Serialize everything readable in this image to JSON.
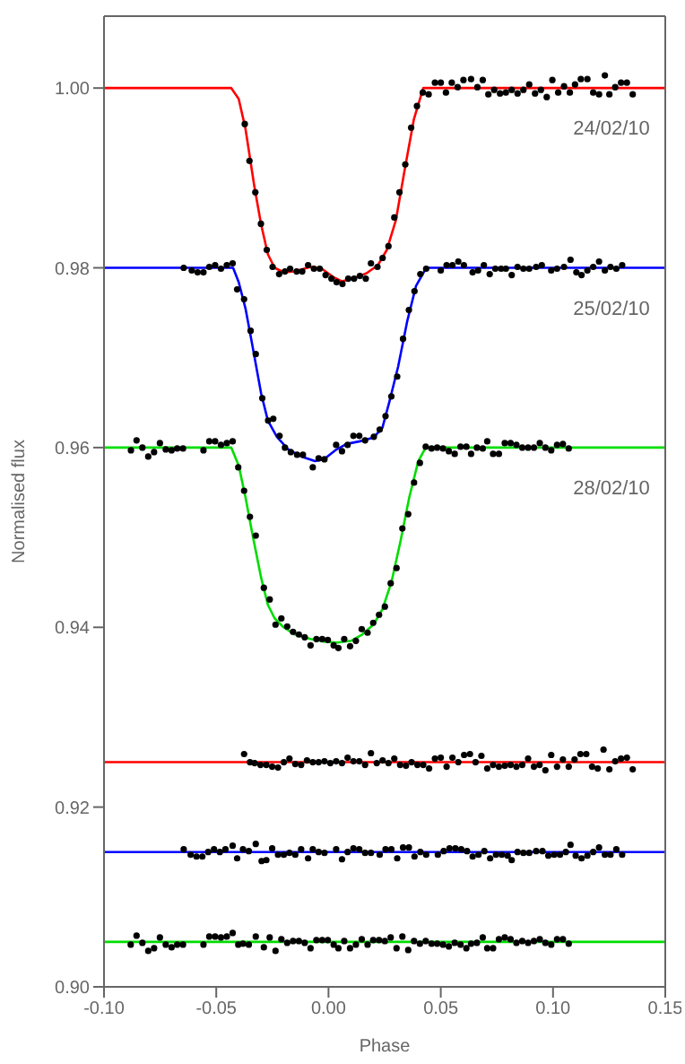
{
  "chart_data": {
    "type": "scatter",
    "xlabel": "Phase",
    "ylabel": "Normalised flux",
    "xlim": [
      -0.1,
      0.15
    ],
    "ylim": [
      0.9,
      1.008
    ],
    "xticks": [
      {
        "value": -0.1,
        "label": "-0.10"
      },
      {
        "value": -0.05,
        "label": "-0.05"
      },
      {
        "value": 0,
        "label": "0.00"
      },
      {
        "value": 0.05,
        "label": "0.05"
      },
      {
        "value": 0.1,
        "label": "0.10"
      },
      {
        "value": 0.15,
        "label": "0.15"
      }
    ],
    "yticks": [
      {
        "value": 0.9,
        "label": "0.90"
      },
      {
        "value": 0.92,
        "label": "0.92"
      },
      {
        "value": 0.94,
        "label": "0.94"
      },
      {
        "value": 0.96,
        "label": "0.96"
      },
      {
        "value": 0.98,
        "label": "0.98"
      },
      {
        "value": 1.0,
        "label": "1.00"
      }
    ],
    "marker": "circle",
    "legend": false,
    "grid": false,
    "ref_lines": [
      {
        "axis": "y",
        "value": 0.925,
        "color": "#ff0000"
      },
      {
        "axis": "y",
        "value": 0.915,
        "color": "#0000ff"
      },
      {
        "axis": "y",
        "value": 0.905,
        "color": "#00dd00"
      }
    ],
    "annotations": [
      "24/02/10",
      "25/02/10",
      "28/02/10"
    ],
    "series": [
      {
        "type": "line",
        "marker": "none",
        "color": "#ff0000",
        "x": [
          -0.1,
          -0.0433,
          -0.04,
          -0.037,
          -0.033,
          -0.03,
          -0.027,
          -0.024,
          -0.02,
          -0.015,
          -0.008,
          -0.003,
          0.002,
          0.006,
          0.011,
          0.017,
          0.022,
          0.026,
          0.03,
          0.034,
          0.038,
          0.0422,
          0.15
        ],
        "values": [
          1.0,
          1.0,
          0.9988,
          0.9955,
          0.989,
          0.9848,
          0.9815,
          0.98,
          0.9795,
          0.9796,
          0.9801,
          0.9799,
          0.979,
          0.9785,
          0.9788,
          0.9794,
          0.9803,
          0.982,
          0.9853,
          0.991,
          0.9965,
          1.0,
          1.0
        ]
      },
      {
        "type": "line",
        "marker": "none",
        "color": "#0000ff",
        "x": [
          -0.1,
          -0.0425,
          -0.04,
          -0.037,
          -0.034,
          -0.03,
          -0.027,
          -0.023,
          -0.018,
          -0.012,
          -0.006,
          -0.002,
          0.003,
          0.008,
          0.014,
          0.02,
          0.024,
          0.027,
          0.031,
          0.035,
          0.039,
          0.0435,
          0.15
        ],
        "values": [
          0.98,
          0.98,
          0.9784,
          0.9755,
          0.9715,
          0.966,
          0.963,
          0.9612,
          0.9598,
          0.959,
          0.9585,
          0.9587,
          0.9597,
          0.9604,
          0.9607,
          0.9611,
          0.9622,
          0.965,
          0.969,
          0.974,
          0.978,
          0.98,
          0.98
        ]
      },
      {
        "type": "line",
        "marker": "none",
        "color": "#00dd00",
        "x": [
          -0.1,
          -0.0433,
          -0.04,
          -0.037,
          -0.034,
          -0.03,
          -0.027,
          -0.024,
          -0.02,
          -0.015,
          -0.008,
          -0.002,
          0.004,
          0.01,
          0.015,
          0.02,
          0.024,
          0.028,
          0.032,
          0.036,
          0.04,
          0.0433,
          0.15
        ],
        "values": [
          0.96,
          0.96,
          0.958,
          0.9545,
          0.9505,
          0.9455,
          0.9425,
          0.941,
          0.94,
          0.9392,
          0.9387,
          0.9384,
          0.9383,
          0.9385,
          0.9392,
          0.9403,
          0.942,
          0.945,
          0.9495,
          0.9545,
          0.9585,
          0.96,
          0.96
        ]
      },
      {
        "color": "#000000",
        "x": [
          -0.0373,
          -0.0352,
          -0.0326,
          -0.0301,
          -0.0275,
          -0.0249,
          -0.022,
          -0.0194,
          -0.0171,
          -0.0142,
          -0.0117,
          -0.0091,
          -0.0065,
          -0.0039,
          -0.0013,
          0.0013,
          0.0036,
          0.0062,
          0.0088,
          0.0114,
          0.014,
          0.0166,
          0.0189,
          0.0218,
          0.0241,
          0.0267,
          0.0293,
          0.0316,
          0.0342,
          0.0368,
          0.0394,
          0.042,
          0.0446,
          0.0474,
          0.05,
          0.0523,
          0.0549,
          0.0575,
          0.0601,
          0.0635,
          0.0663,
          0.0687,
          0.0712,
          0.0738,
          0.0764,
          0.079,
          0.0816,
          0.0842,
          0.0868,
          0.0894,
          0.092,
          0.0946,
          0.0972,
          0.0997,
          0.1023,
          0.1049,
          0.1075,
          0.1098,
          0.1124,
          0.1153,
          0.1179,
          0.1205,
          0.1231,
          0.1251,
          0.1277,
          0.1303,
          0.1329,
          0.1355
        ],
        "values": [
          0.996,
          0.9919,
          0.9884,
          0.9849,
          0.982,
          0.9801,
          0.9793,
          0.9796,
          0.9799,
          0.9796,
          0.9796,
          0.9803,
          0.9799,
          0.9799,
          0.9792,
          0.9788,
          0.9784,
          0.9782,
          0.9788,
          0.9788,
          0.9791,
          0.9788,
          0.9805,
          0.9801,
          0.9811,
          0.9824,
          0.9856,
          0.9884,
          0.9915,
          0.9956,
          0.998,
          0.9995,
          0.9993,
          1.0006,
          1.0006,
          0.9995,
          1.0006,
          1.0001,
          1.0009,
          1.001,
          1.0001,
          1.0009,
          0.9993,
          0.9998,
          0.9994,
          0.9995,
          0.9998,
          0.9994,
          0.9998,
          1.0004,
          0.9994,
          0.9998,
          0.999,
          1.0009,
          0.9995,
          1.0002,
          0.9995,
          1.0004,
          1.001,
          1.001,
          0.9995,
          0.9993,
          1.0014,
          0.9993,
          1.0001,
          1.0006,
          1.0006,
          0.9993
        ]
      },
      {
        "color": "#000000",
        "x": [
          -0.0645,
          -0.0609,
          -0.0583,
          -0.0557,
          -0.0531,
          -0.0505,
          -0.0479,
          -0.0453,
          -0.0427,
          -0.0407,
          -0.0376,
          -0.0347,
          -0.0324,
          -0.0295,
          -0.0269,
          -0.0246,
          -0.0218,
          -0.0194,
          -0.0168,
          -0.014,
          -0.0114,
          -0.007,
          -0.0044,
          -0.0018,
          0.0034,
          0.006,
          0.0085,
          0.0111,
          0.0137,
          0.0163,
          0.0202,
          0.0228,
          0.0254,
          0.028,
          0.0306,
          0.0332,
          0.0358,
          0.0383,
          0.0409,
          0.0435,
          0.05,
          0.0526,
          0.0552,
          0.0578,
          0.0603,
          0.0642,
          0.0666,
          0.0692,
          0.0718,
          0.0743,
          0.0769,
          0.079,
          0.0816,
          0.0842,
          0.0868,
          0.0894,
          0.0925,
          0.095,
          0.0992,
          0.1018,
          0.1049,
          0.1078,
          0.1104,
          0.1127,
          0.1153,
          0.1179,
          0.1205,
          0.1231,
          0.1256,
          0.1282,
          0.1308
        ],
        "values": [
          0.98,
          0.9797,
          0.9795,
          0.9795,
          0.9801,
          0.9803,
          0.9799,
          0.9803,
          0.9805,
          0.9776,
          0.9765,
          0.973,
          0.9704,
          0.9655,
          0.963,
          0.9632,
          0.9613,
          0.96,
          0.9595,
          0.9592,
          0.9592,
          0.9578,
          0.9588,
          0.9587,
          0.9603,
          0.9596,
          0.9603,
          0.9613,
          0.9613,
          0.9608,
          0.9612,
          0.962,
          0.9635,
          0.9657,
          0.9679,
          0.9721,
          0.9753,
          0.9774,
          0.9793,
          0.9799,
          0.9797,
          0.9803,
          0.9803,
          0.9807,
          0.9803,
          0.9795,
          0.9797,
          0.9803,
          0.9793,
          0.9799,
          0.9799,
          0.9799,
          0.9792,
          0.9801,
          0.9799,
          0.9799,
          0.9801,
          0.9803,
          0.9797,
          0.9799,
          0.9801,
          0.9809,
          0.9795,
          0.9792,
          0.9797,
          0.9801,
          0.9807,
          0.9797,
          0.9801,
          0.9799,
          0.9803
        ]
      },
      {
        "color": "#000000",
        "x": [
          -0.088,
          -0.0855,
          -0.0829,
          -0.0803,
          -0.0777,
          -0.0751,
          -0.0725,
          -0.0699,
          -0.0674,
          -0.0648,
          -0.0557,
          -0.0531,
          -0.0505,
          -0.0479,
          -0.0453,
          -0.0427,
          -0.0402,
          -0.0376,
          -0.035,
          -0.0324,
          -0.0288,
          -0.0262,
          -0.0236,
          -0.021,
          -0.0184,
          -0.0158,
          -0.0132,
          -0.0106,
          -0.008,
          -0.0054,
          -0.0028,
          -0.0003,
          0.0023,
          0.0044,
          0.007,
          0.0096,
          0.0122,
          0.0148,
          0.0174,
          0.0199,
          0.0225,
          0.0251,
          0.0277,
          0.0303,
          0.0329,
          0.0355,
          0.0381,
          0.0407,
          0.0433,
          0.0459,
          0.0484,
          0.051,
          0.0536,
          0.0562,
          0.0588,
          0.0614,
          0.0635,
          0.0661,
          0.0687,
          0.0707,
          0.0733,
          0.0759,
          0.0785,
          0.0811,
          0.0837,
          0.0863,
          0.0889,
          0.0915,
          0.0941,
          0.0966,
          0.0992,
          0.1018,
          0.1044,
          0.107
        ],
        "values": [
          0.9597,
          0.9608,
          0.96,
          0.959,
          0.9595,
          0.9605,
          0.9598,
          0.9597,
          0.9599,
          0.9599,
          0.9597,
          0.9607,
          0.9607,
          0.9603,
          0.9605,
          0.9607,
          0.9578,
          0.9552,
          0.9523,
          0.9502,
          0.9444,
          0.9431,
          0.9403,
          0.941,
          0.9401,
          0.9395,
          0.9392,
          0.9389,
          0.938,
          0.9387,
          0.9387,
          0.9386,
          0.938,
          0.9377,
          0.9387,
          0.9379,
          0.9385,
          0.9398,
          0.9394,
          0.9405,
          0.9414,
          0.9423,
          0.9449,
          0.9466,
          0.951,
          0.9526,
          0.9561,
          0.9583,
          0.9601,
          0.9599,
          0.96,
          0.9599,
          0.9596,
          0.9593,
          0.9601,
          0.9601,
          0.9593,
          0.96,
          0.9599,
          0.9607,
          0.9593,
          0.9593,
          0.9605,
          0.9605,
          0.9603,
          0.96,
          0.96,
          0.96,
          0.9605,
          0.96,
          0.9597,
          0.9603,
          0.9604,
          0.9599
        ]
      },
      {
        "color": "#000000",
        "x": [
          -0.0376,
          -0.035,
          -0.0329,
          -0.0303,
          -0.0277,
          -0.0251,
          -0.0225,
          -0.0199,
          -0.0174,
          -0.0148,
          -0.0122,
          -0.0096,
          -0.007,
          -0.0044,
          -0.0018,
          0.0008,
          0.0034,
          0.006,
          0.0085,
          0.0111,
          0.0137,
          0.0163,
          0.0189,
          0.0215,
          0.0241,
          0.0267,
          0.0293,
          0.0319,
          0.0345,
          0.037,
          0.0396,
          0.0422,
          0.0448,
          0.0474,
          0.05,
          0.0526,
          0.0552,
          0.0578,
          0.0604,
          0.063,
          0.0655,
          0.0681,
          0.0707,
          0.0733,
          0.0759,
          0.0785,
          0.0811,
          0.0837,
          0.0863,
          0.0889,
          0.0915,
          0.094,
          0.0966,
          0.0992,
          0.1018,
          0.1044,
          0.107,
          0.1096,
          0.1122,
          0.1148,
          0.1174,
          0.1199,
          0.1225,
          0.1251,
          0.1277,
          0.1303,
          0.1329,
          0.1355
        ],
        "values": [
          0.9259,
          0.925,
          0.9249,
          0.9247,
          0.9247,
          0.9245,
          0.9244,
          0.925,
          0.9254,
          0.9248,
          0.9247,
          0.9252,
          0.925,
          0.925,
          0.9251,
          0.9249,
          0.9251,
          0.9249,
          0.9255,
          0.9251,
          0.9251,
          0.9247,
          0.926,
          0.9249,
          0.9252,
          0.9249,
          0.9254,
          0.9247,
          0.9246,
          0.925,
          0.9247,
          0.9247,
          0.9243,
          0.9254,
          0.9255,
          0.9245,
          0.9255,
          0.925,
          0.9258,
          0.9259,
          0.925,
          0.9257,
          0.9243,
          0.9247,
          0.9245,
          0.9246,
          0.9247,
          0.9245,
          0.9247,
          0.9254,
          0.9245,
          0.9247,
          0.9241,
          0.9258,
          0.9245,
          0.9253,
          0.9245,
          0.9253,
          0.9259,
          0.9259,
          0.9245,
          0.9243,
          0.9264,
          0.9242,
          0.9251,
          0.9254,
          0.9255,
          0.9242
        ]
      },
      {
        "color": "#000000",
        "x": [
          -0.0645,
          -0.0614,
          -0.0588,
          -0.0562,
          -0.0536,
          -0.051,
          -0.0484,
          -0.0459,
          -0.0427,
          -0.0407,
          -0.0381,
          -0.0355,
          -0.0324,
          -0.0298,
          -0.0277,
          -0.0251,
          -0.0225,
          -0.0199,
          -0.0174,
          -0.0148,
          -0.0122,
          -0.0091,
          -0.007,
          -0.0044,
          -0.0018,
          0.0034,
          0.006,
          0.0085,
          0.0111,
          0.0137,
          0.0163,
          0.0189,
          0.0228,
          0.0254,
          0.028,
          0.0306,
          0.0332,
          0.0358,
          0.0383,
          0.0409,
          0.0435,
          0.0487,
          0.0513,
          0.0539,
          0.0565,
          0.0591,
          0.0617,
          0.0642,
          0.0668,
          0.0694,
          0.072,
          0.0746,
          0.0772,
          0.0798,
          0.0816,
          0.0842,
          0.0868,
          0.0894,
          0.0925,
          0.0953,
          0.0979,
          0.1005,
          0.1031,
          0.1057,
          0.1078,
          0.1101,
          0.1127,
          0.1153,
          0.1179,
          0.1205,
          0.1231,
          0.1256,
          0.1282,
          0.1308
        ],
        "values": [
          0.9153,
          0.9147,
          0.9145,
          0.9145,
          0.915,
          0.9153,
          0.915,
          0.9153,
          0.9157,
          0.9143,
          0.9153,
          0.9151,
          0.9159,
          0.914,
          0.9141,
          0.9154,
          0.9147,
          0.9147,
          0.9149,
          0.9147,
          0.9153,
          0.9143,
          0.9153,
          0.915,
          0.9149,
          0.9153,
          0.9142,
          0.915,
          0.9154,
          0.9153,
          0.9149,
          0.9149,
          0.9147,
          0.9153,
          0.9153,
          0.9143,
          0.9155,
          0.9155,
          0.9145,
          0.915,
          0.9147,
          0.9147,
          0.9151,
          0.9154,
          0.9154,
          0.9153,
          0.9151,
          0.9145,
          0.9147,
          0.9151,
          0.9143,
          0.9147,
          0.9147,
          0.9146,
          0.9141,
          0.915,
          0.9149,
          0.9149,
          0.9151,
          0.9151,
          0.9146,
          0.9147,
          0.9147,
          0.915,
          0.9158,
          0.9146,
          0.9143,
          0.9146,
          0.915,
          0.9155,
          0.9147,
          0.9147,
          0.9153,
          0.9147
        ]
      },
      {
        "color": "#000000",
        "x": [
          -0.0881,
          -0.0855,
          -0.0829,
          -0.0803,
          -0.0777,
          -0.0751,
          -0.0725,
          -0.0699,
          -0.0674,
          -0.0648,
          -0.0557,
          -0.0531,
          -0.0505,
          -0.0479,
          -0.0453,
          -0.0427,
          -0.0402,
          -0.0381,
          -0.0355,
          -0.0324,
          -0.0288,
          -0.0262,
          -0.0236,
          -0.021,
          -0.0184,
          -0.0158,
          -0.0132,
          -0.0106,
          -0.008,
          -0.0054,
          -0.0028,
          -0.0003,
          0.0023,
          0.0044,
          0.007,
          0.0096,
          0.0122,
          0.0148,
          0.0174,
          0.0199,
          0.0225,
          0.0251,
          0.0277,
          0.0303,
          0.0329,
          0.0355,
          0.0381,
          0.0407,
          0.0433,
          0.0459,
          0.0484,
          0.051,
          0.0536,
          0.0562,
          0.0588,
          0.0614,
          0.0635,
          0.0661,
          0.0687,
          0.0707,
          0.0733,
          0.0759,
          0.0785,
          0.0811,
          0.0837,
          0.0863,
          0.0889,
          0.0915,
          0.0941,
          0.0966,
          0.0992,
          0.1018,
          0.1044,
          0.107
        ],
        "values": [
          0.9047,
          0.9057,
          0.9049,
          0.904,
          0.9043,
          0.9055,
          0.9047,
          0.9044,
          0.9047,
          0.9047,
          0.9047,
          0.9056,
          0.9056,
          0.9055,
          0.9056,
          0.906,
          0.9047,
          0.9048,
          0.9047,
          0.9056,
          0.9044,
          0.9055,
          0.904,
          0.9053,
          0.9049,
          0.9051,
          0.9051,
          0.9049,
          0.9043,
          0.9052,
          0.9052,
          0.9052,
          0.9047,
          0.9043,
          0.9051,
          0.9043,
          0.9047,
          0.9053,
          0.9047,
          0.9052,
          0.9052,
          0.9051,
          0.9055,
          0.9043,
          0.9056,
          0.9041,
          0.9051,
          0.9048,
          0.9051,
          0.9048,
          0.9048,
          0.9047,
          0.9045,
          0.9049,
          0.9047,
          0.9043,
          0.9048,
          0.9049,
          0.9055,
          0.9043,
          0.9043,
          0.9053,
          0.9055,
          0.9053,
          0.9049,
          0.9051,
          0.9049,
          0.9051,
          0.9053,
          0.9049,
          0.9047,
          0.9053,
          0.9053,
          0.9048
        ]
      }
    ]
  }
}
